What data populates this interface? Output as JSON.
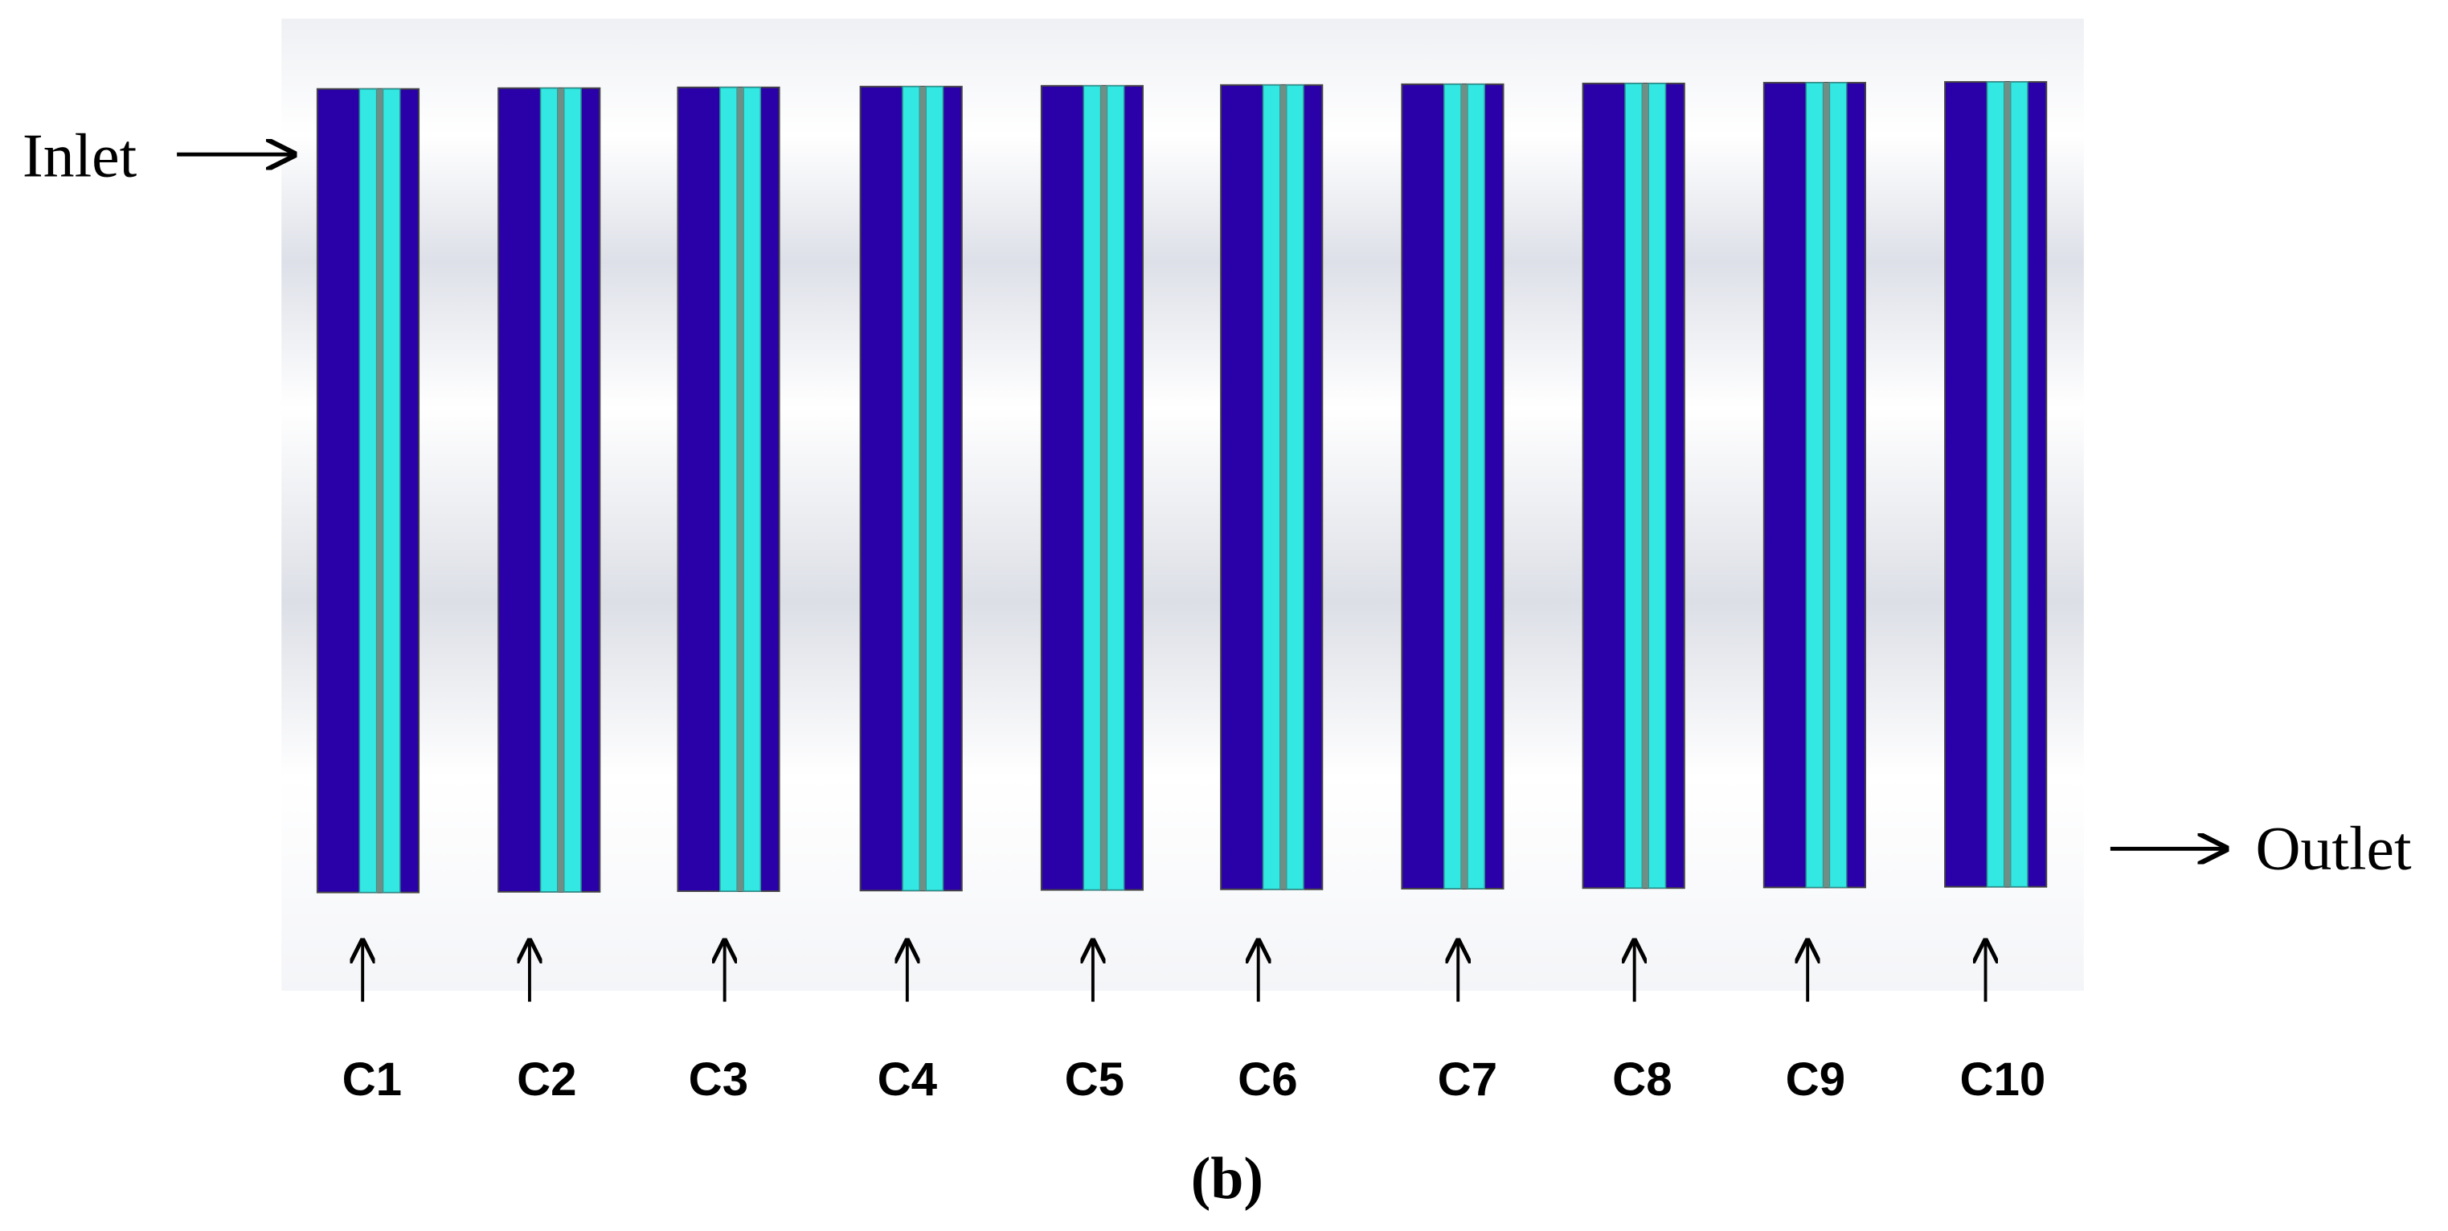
{
  "labels": {
    "inlet": "Inlet",
    "outlet": "Outlet"
  },
  "columns": [
    {
      "label": "C1"
    },
    {
      "label": "C2"
    },
    {
      "label": "C3"
    },
    {
      "label": "C4"
    },
    {
      "label": "C5"
    },
    {
      "label": "C6"
    },
    {
      "label": "C7"
    },
    {
      "label": "C8"
    },
    {
      "label": "C9"
    },
    {
      "label": "C10"
    }
  ],
  "caption": "(b)"
}
